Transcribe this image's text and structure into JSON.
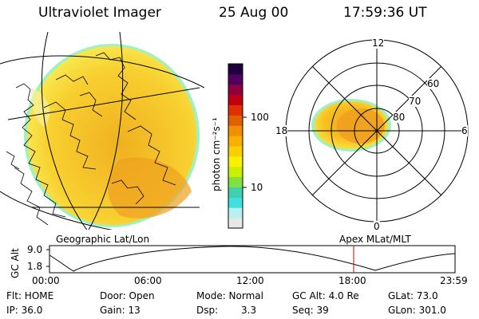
{
  "header": {
    "title": "Ultraviolet Imager",
    "date": "25 Aug 00",
    "time": "17:59:36 UT"
  },
  "colorbar": {
    "unit_label": "photon cm⁻²s⁻¹",
    "tick_100": "100",
    "tick_10": "10",
    "colors": [
      "#e8e8e8",
      "#b8f0f0",
      "#40e0e0",
      "#40d0b0",
      "#80e040",
      "#c8f000",
      "#f8f000",
      "#f8d000",
      "#f8b000",
      "#f09000",
      "#e06000",
      "#e03000",
      "#c00010",
      "#900040",
      "#500060",
      "#200040"
    ]
  },
  "map_labels": {
    "left": "Geographic Lat/Lon",
    "right": "Apex MLat/MLT"
  },
  "polar": {
    "mlt_12": "12",
    "mlt_18": "18",
    "mlt_6": "6",
    "mlt_0": "0",
    "lat_60": "60",
    "lat_70": "70",
    "lat_80": "80"
  },
  "altitude_plot": {
    "ylabel": "GC Alt",
    "ytick_high": "9.0",
    "ytick_low": "1.8",
    "xticks": [
      "00:00",
      "06:00",
      "12:00",
      "18:00",
      "23:59"
    ],
    "current_time_marker_color": "#cc0000"
  },
  "status": {
    "flt": "Flt: HOME",
    "ip": "IP: 36.0",
    "door": "Door: Open",
    "gain": "Gain: 13",
    "mode": "Mode: Normal",
    "dsp_label": "Dsp:",
    "dsp_value": "3.3",
    "gc_alt": "GC Alt: 4.0 Re",
    "seq": "Seq: 39",
    "glat": "GLat: 73.0",
    "glon": "GLon: 301.0"
  }
}
